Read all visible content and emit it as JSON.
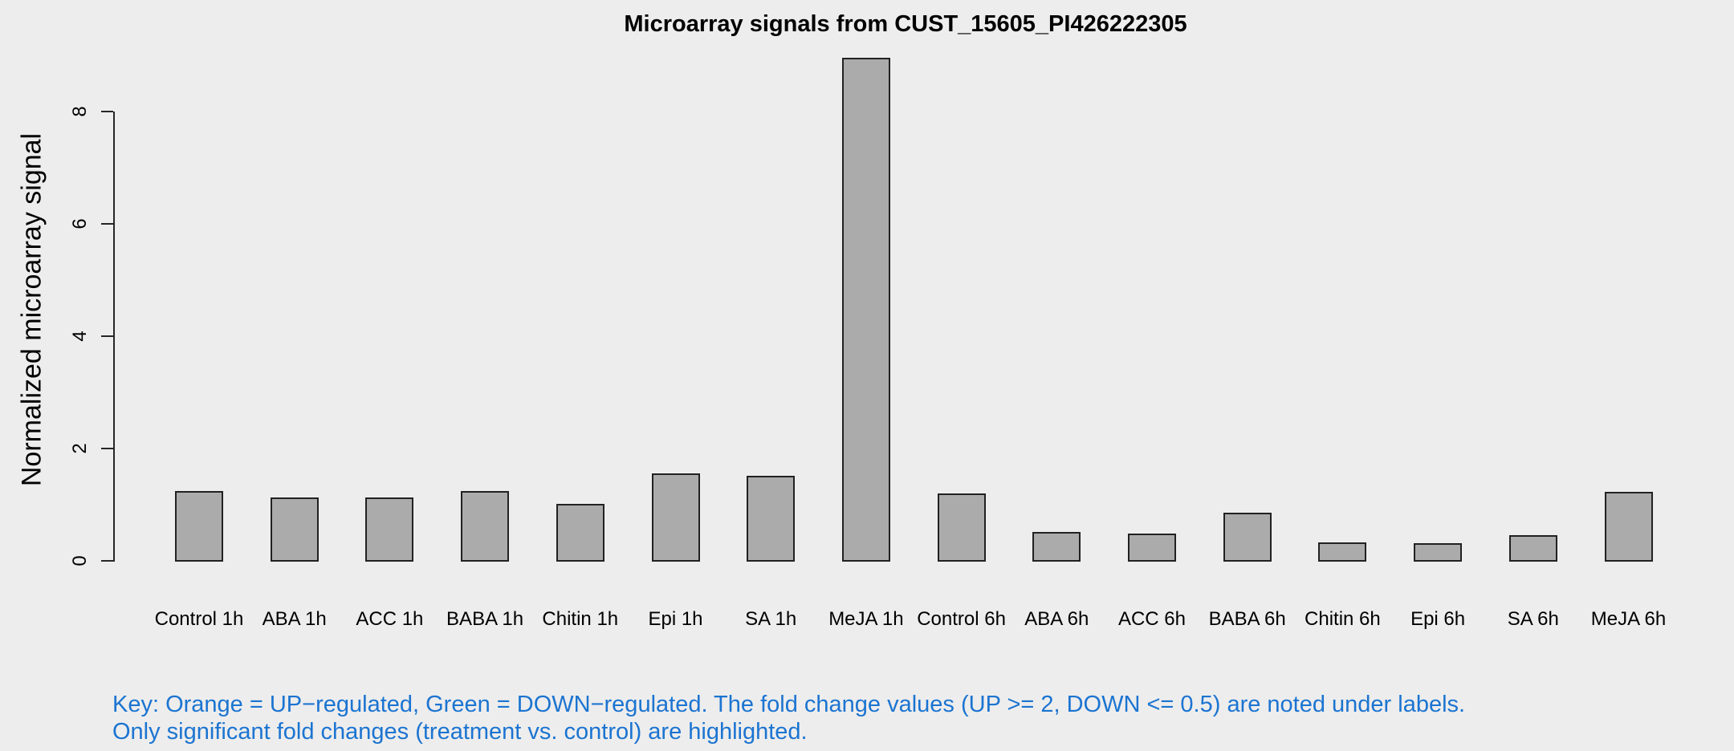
{
  "chart_data": {
    "type": "bar",
    "title": "Microarray signals from CUST_15605_PI426222305",
    "ylabel": "Normalized microarray signal",
    "xlabel": "",
    "categories": [
      "Control 1h",
      "ABA 1h",
      "ACC 1h",
      "BABA 1h",
      "Chitin 1h",
      "Epi 1h",
      "SA 1h",
      "MeJA 1h",
      "Control 6h",
      "ABA 6h",
      "ACC 6h",
      "BABA 6h",
      "Chitin 6h",
      "Epi 6h",
      "SA 6h",
      "MeJA 6h"
    ],
    "values": [
      1.25,
      1.13,
      1.13,
      1.25,
      1.01,
      1.56,
      1.52,
      8.96,
      1.2,
      0.51,
      0.49,
      0.86,
      0.33,
      0.32,
      0.46,
      1.23
    ],
    "yticks": [
      0,
      2,
      4,
      6,
      8
    ],
    "ylim": [
      0,
      9.2
    ],
    "grid": false,
    "legend": "none",
    "bar_fill": "#ABABAB",
    "bar_border": "#212121",
    "axis_color": "#262626",
    "background": "#EDEDED",
    "text_color": "#000000"
  },
  "footnote": {
    "color": "#1B74D1",
    "lines": [
      "Key: Orange = UP−regulated, Green = DOWN−regulated. The fold change values (UP >= 2, DOWN <= 0.5) are noted under labels.",
      "Only significant fold changes (treatment vs. control) are highlighted."
    ]
  }
}
